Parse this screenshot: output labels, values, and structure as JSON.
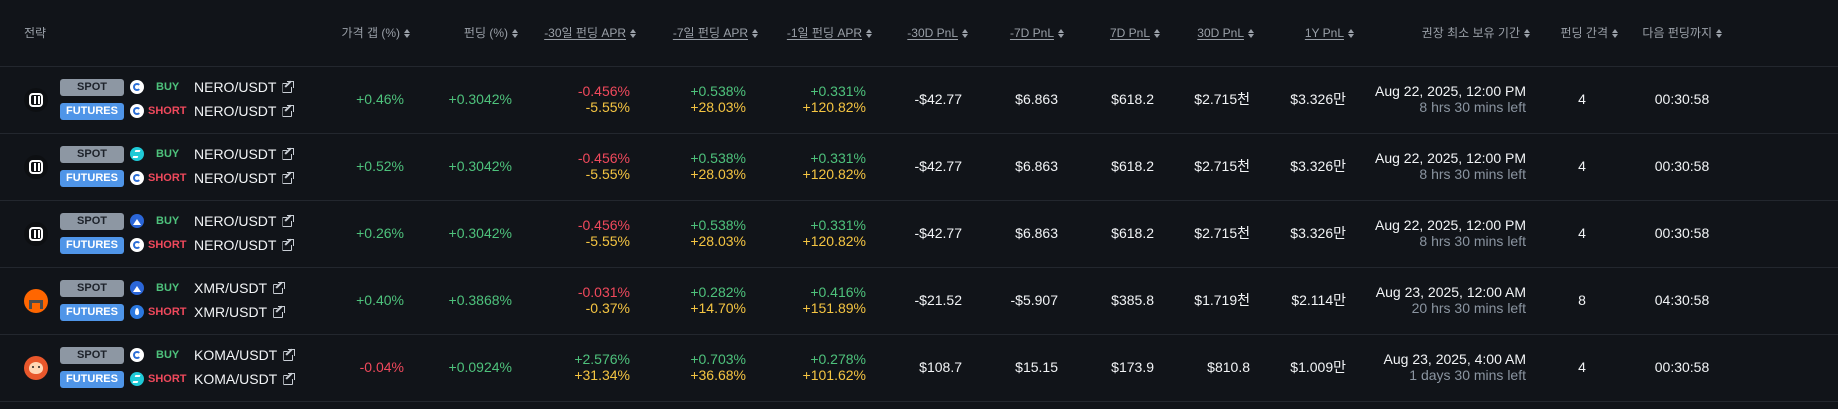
{
  "header": {
    "strategy": "전략",
    "price_gap": "가격 갭 (%)",
    "funding": "펀딩 (%)",
    "apr30": "-30일 펀딩 APR",
    "apr7": "-7일 펀딩 APR",
    "apr1": "-1일 펀딩 APR",
    "pnl_m30": "-30D PnL",
    "pnl_m7": "-7D PnL",
    "pnl_7": "7D PnL",
    "pnl_30": "30D PnL",
    "pnl_1y": "1Y PnL",
    "min_hold": "권장 최소 보유 기간",
    "interval": "펀딩 간격",
    "next": "다음 펀딩까지"
  },
  "labels": {
    "spot": "SPOT",
    "futures": "FUTURES",
    "buy": "BUY",
    "short": "SHORT"
  },
  "rows": [
    {
      "coin_icon": "nero-coin-icon",
      "spot_exchange_icon": "exchange-circle-icon",
      "fut_exchange_icon": "exchange-circle-icon",
      "spot_pair": "NERO/USDT",
      "fut_pair": "NERO/USDT",
      "price_gap": "+0.46%",
      "funding": "+0.3042%",
      "apr30_a": "-0.456%",
      "apr30_b": "-5.55%",
      "apr7_a": "+0.538%",
      "apr7_b": "+28.03%",
      "apr1_a": "+0.331%",
      "apr1_b": "+120.82%",
      "pnl_m30": "-$42.77",
      "pnl_m7": "$6.863",
      "pnl_7": "$618.2",
      "pnl_30": "$2.715천",
      "pnl_1y": "$3.326만",
      "hold_date": "Aug 22, 2025, 12:00 PM",
      "hold_left": "8 hrs 30 mins left",
      "interval": "4",
      "next": "00:30:58"
    },
    {
      "coin_icon": "nero-coin-icon",
      "spot_exchange_icon": "exchange-aqua-icon",
      "fut_exchange_icon": "exchange-circle-icon",
      "spot_pair": "NERO/USDT",
      "fut_pair": "NERO/USDT",
      "price_gap": "+0.52%",
      "funding": "+0.3042%",
      "apr30_a": "-0.456%",
      "apr30_b": "-5.55%",
      "apr7_a": "+0.538%",
      "apr7_b": "+28.03%",
      "apr1_a": "+0.331%",
      "apr1_b": "+120.82%",
      "pnl_m30": "-$42.77",
      "pnl_m7": "$6.863",
      "pnl_7": "$618.2",
      "pnl_30": "$2.715천",
      "pnl_1y": "$3.326만",
      "hold_date": "Aug 22, 2025, 12:00 PM",
      "hold_left": "8 hrs 30 mins left",
      "interval": "4",
      "next": "00:30:58"
    },
    {
      "coin_icon": "nero-coin-icon",
      "spot_exchange_icon": "exchange-wave-icon",
      "fut_exchange_icon": "exchange-circle-icon",
      "spot_pair": "NERO/USDT",
      "fut_pair": "NERO/USDT",
      "price_gap": "+0.26%",
      "funding": "+0.3042%",
      "apr30_a": "-0.456%",
      "apr30_b": "-5.55%",
      "apr7_a": "+0.538%",
      "apr7_b": "+28.03%",
      "apr1_a": "+0.331%",
      "apr1_b": "+120.82%",
      "pnl_m30": "-$42.77",
      "pnl_m7": "$6.863",
      "pnl_7": "$618.2",
      "pnl_30": "$2.715천",
      "pnl_1y": "$3.326만",
      "hold_date": "Aug 22, 2025, 12:00 PM",
      "hold_left": "8 hrs 30 mins left",
      "interval": "4",
      "next": "00:30:58"
    },
    {
      "coin_icon": "monero-coin-icon",
      "spot_exchange_icon": "exchange-wave-icon",
      "fut_exchange_icon": "exchange-drop-icon",
      "spot_pair": "XMR/USDT",
      "fut_pair": "XMR/USDT",
      "price_gap": "+0.40%",
      "funding": "+0.3868%",
      "apr30_a": "-0.031%",
      "apr30_b": "-0.37%",
      "apr7_a": "+0.282%",
      "apr7_b": "+14.70%",
      "apr1_a": "+0.416%",
      "apr1_b": "+151.89%",
      "pnl_m30": "-$21.52",
      "pnl_m7": "-$5.907",
      "pnl_7": "$385.8",
      "pnl_30": "$1.719천",
      "pnl_1y": "$2.114만",
      "hold_date": "Aug 23, 2025, 12:00 AM",
      "hold_left": "20 hrs 30 mins left",
      "interval": "8",
      "next": "04:30:58"
    },
    {
      "coin_icon": "koma-coin-icon",
      "spot_exchange_icon": "exchange-circle-icon",
      "fut_exchange_icon": "exchange-aqua-icon",
      "spot_pair": "KOMA/USDT",
      "fut_pair": "KOMA/USDT",
      "price_gap": "-0.04%",
      "funding": "+0.0924%",
      "apr30_a": "+2.576%",
      "apr30_b": "+31.34%",
      "apr7_a": "+0.703%",
      "apr7_b": "+36.68%",
      "apr1_a": "+0.278%",
      "apr1_b": "+101.62%",
      "pnl_m30": "$108.7",
      "pnl_m7": "$15.15",
      "pnl_7": "$173.9",
      "pnl_30": "$810.8",
      "pnl_1y": "$1.009만",
      "hold_date": "Aug 23, 2025, 4:00 AM",
      "hold_left": "1 days 30 mins left",
      "interval": "4",
      "next": "00:30:58"
    }
  ],
  "colors": {
    "background": "#111419",
    "positive": "#4ec27c",
    "negative": "#f0495c",
    "highlight": "#f5c542",
    "futures_badge": "#4f95e8",
    "spot_badge": "#8d97a3"
  }
}
